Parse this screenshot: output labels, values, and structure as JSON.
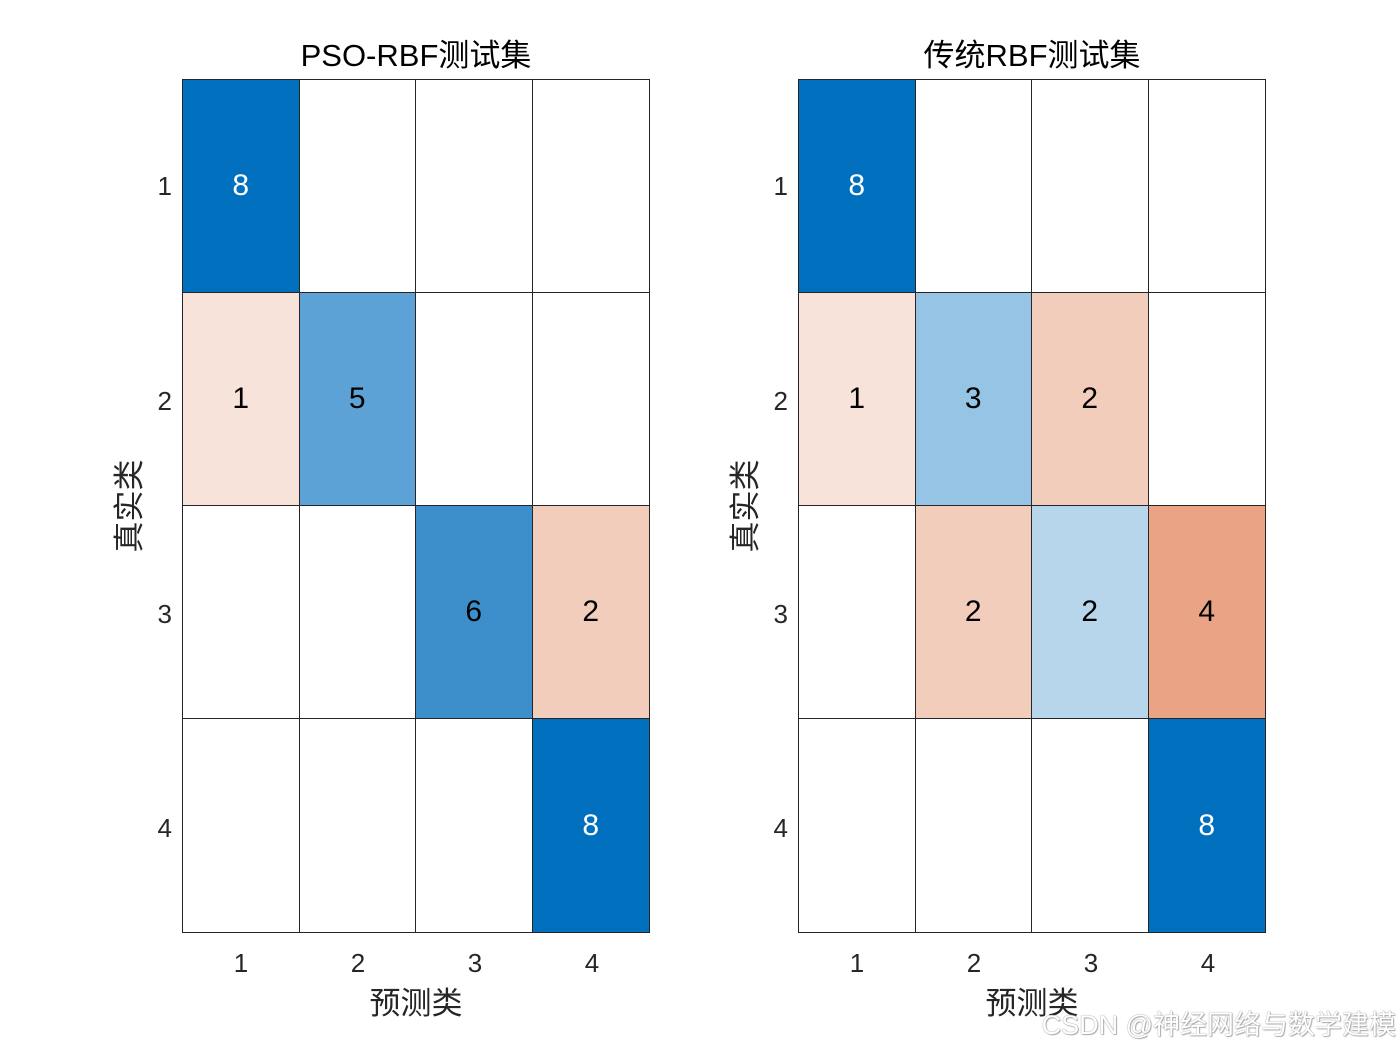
{
  "chart_data": [
    {
      "type": "heatmap",
      "title": "PSO-RBF测试集",
      "xlabel": "预测类",
      "ylabel": "真实类",
      "x_categories": [
        "1",
        "2",
        "3",
        "4"
      ],
      "y_categories": [
        "1",
        "2",
        "3",
        "4"
      ],
      "matrix": [
        [
          8,
          0,
          0,
          0
        ],
        [
          1,
          5,
          0,
          0
        ],
        [
          0,
          0,
          6,
          2
        ],
        [
          0,
          0,
          0,
          8
        ]
      ],
      "display": [
        [
          "8",
          "",
          "",
          ""
        ],
        [
          "1",
          "5",
          "",
          ""
        ],
        [
          "",
          "",
          "6",
          "2"
        ],
        [
          "",
          "",
          "",
          "8"
        ]
      ],
      "cell_colors": [
        [
          "#0070BE",
          "#FFFFFF",
          "#FFFFFF",
          "#FFFFFF"
        ],
        [
          "#F8E3DA",
          "#5CA2D6",
          "#FFFFFF",
          "#FFFFFF"
        ],
        [
          "#FFFFFF",
          "#FFFFFF",
          "#3D8FCC",
          "#F2CDBC"
        ],
        [
          "#FFFFFF",
          "#FFFFFF",
          "#FFFFFF",
          "#0070BE"
        ]
      ],
      "text_colors": [
        [
          "#FFFFFF",
          "#000000",
          "#000000",
          "#000000"
        ],
        [
          "#000000",
          "#000000",
          "#000000",
          "#000000"
        ],
        [
          "#000000",
          "#000000",
          "#000000",
          "#000000"
        ],
        [
          "#000000",
          "#000000",
          "#000000",
          "#FFFFFF"
        ]
      ],
      "grid": true,
      "legend": "none"
    },
    {
      "type": "heatmap",
      "title": "传统RBF测试集",
      "xlabel": "预测类",
      "ylabel": "真实类",
      "x_categories": [
        "1",
        "2",
        "3",
        "4"
      ],
      "y_categories": [
        "1",
        "2",
        "3",
        "4"
      ],
      "matrix": [
        [
          8,
          0,
          0,
          0
        ],
        [
          1,
          3,
          2,
          0
        ],
        [
          0,
          2,
          2,
          4
        ],
        [
          0,
          0,
          0,
          8
        ]
      ],
      "display": [
        [
          "8",
          "",
          "",
          ""
        ],
        [
          "1",
          "3",
          "2",
          ""
        ],
        [
          "",
          "2",
          "2",
          "4"
        ],
        [
          "",
          "",
          "",
          "8"
        ]
      ],
      "cell_colors": [
        [
          "#0070BE",
          "#FFFFFF",
          "#FFFFFF",
          "#FFFFFF"
        ],
        [
          "#F8E3DA",
          "#96C4E4",
          "#F2CDBC",
          "#FFFFFF"
        ],
        [
          "#FFFFFF",
          "#F2CDBC",
          "#B7D6EC",
          "#EAA385"
        ],
        [
          "#FFFFFF",
          "#FFFFFF",
          "#FFFFFF",
          "#0070BE"
        ]
      ],
      "text_colors": [
        [
          "#FFFFFF",
          "#000000",
          "#000000",
          "#000000"
        ],
        [
          "#000000",
          "#000000",
          "#000000",
          "#000000"
        ],
        [
          "#000000",
          "#000000",
          "#000000",
          "#000000"
        ],
        [
          "#000000",
          "#000000",
          "#000000",
          "#FFFFFF"
        ]
      ],
      "grid": true,
      "legend": "none"
    }
  ],
  "watermark": "CSDN @神经网络与数学建模"
}
